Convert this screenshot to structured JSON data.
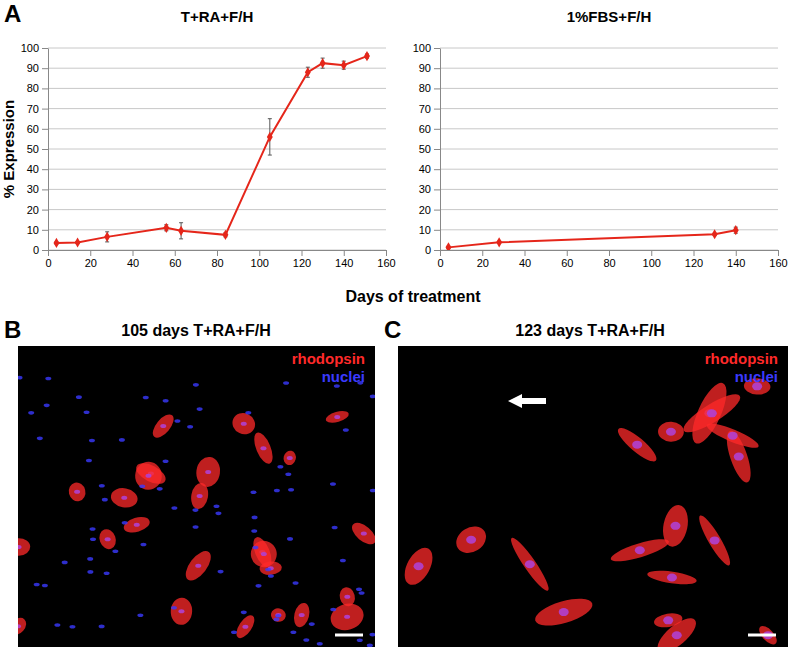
{
  "figure": {
    "label": "A",
    "x_label": "Days of treatment"
  },
  "chart_data": [
    {
      "type": "line",
      "title": "T+RA+F/H",
      "y_label": "% Expression",
      "x": [
        4,
        14,
        28,
        56,
        63,
        84,
        105,
        123,
        130,
        140,
        151
      ],
      "series": [
        {
          "color": "#e5261a",
          "marker": "diamond",
          "values": [
            3.5,
            3.7,
            6.5,
            11,
            9.5,
            7.5,
            56,
            88,
            92.5,
            91.5,
            96
          ],
          "error": [
            0.5,
            0.5,
            2.5,
            1.5,
            4,
            1,
            9,
            2.5,
            2.5,
            2,
            1
          ]
        }
      ],
      "xlim": [
        0,
        160
      ],
      "xticks": [
        0,
        20,
        40,
        60,
        80,
        100,
        120,
        140,
        160
      ],
      "ylim": [
        0,
        100
      ],
      "yticks": [
        0,
        10,
        20,
        30,
        40,
        50,
        60,
        70,
        80,
        90,
        100
      ],
      "grid": true
    },
    {
      "type": "line",
      "title": "1%FBS+F/H",
      "x": [
        4,
        28,
        130,
        140
      ],
      "series": [
        {
          "color": "#e5261a",
          "marker": "diamond",
          "values": [
            1.3,
            3.8,
            7.8,
            9.8
          ],
          "error": [
            0.5,
            0.5,
            0.5,
            1.5
          ]
        }
      ],
      "xlim": [
        0,
        160
      ],
      "xticks": [
        0,
        20,
        40,
        60,
        80,
        100,
        120,
        140,
        160
      ],
      "ylim": [
        0,
        100
      ],
      "yticks": [
        0,
        10,
        20,
        30,
        40,
        50,
        60,
        70,
        80,
        90,
        100
      ],
      "grid": true
    }
  ],
  "images": [
    {
      "label": "B",
      "title": "105 days T+RA+F/H",
      "legend": [
        {
          "name": "rhodopsin",
          "color": "#ff2a2a"
        },
        {
          "name": "nuclei",
          "color": "#3a3aff"
        }
      ]
    },
    {
      "label": "C",
      "title": "123 days T+RA+F/H",
      "legend": [
        {
          "name": "rhodopsin",
          "color": "#ff2a2a"
        },
        {
          "name": "nuclei",
          "color": "#3a3aff"
        }
      ]
    }
  ]
}
